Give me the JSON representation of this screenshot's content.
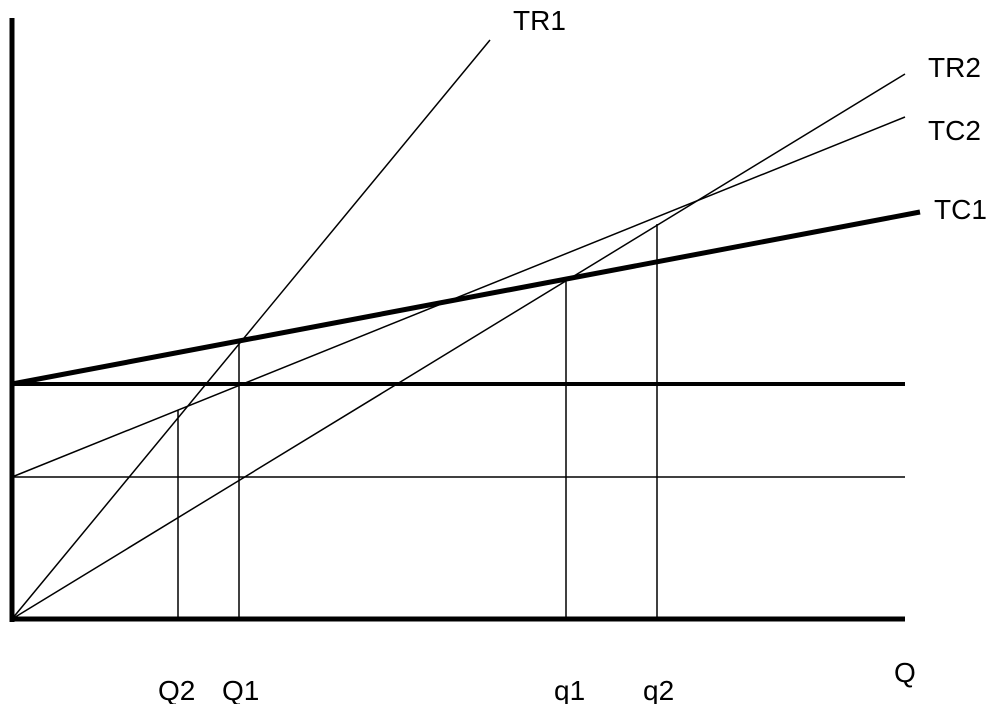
{
  "diagram": {
    "curves": {
      "tr1": "TR1",
      "tr2": "TR2",
      "tc2": "TC2",
      "tc1": "TC1"
    },
    "axis": {
      "x": "Q"
    },
    "quantities": {
      "q_upper_2": "Q2",
      "q_upper_1": "Q1",
      "q_lower_1": "q1",
      "q_lower_2": "q2"
    }
  },
  "colors": {
    "line": "#000000",
    "background": "#ffffff"
  }
}
